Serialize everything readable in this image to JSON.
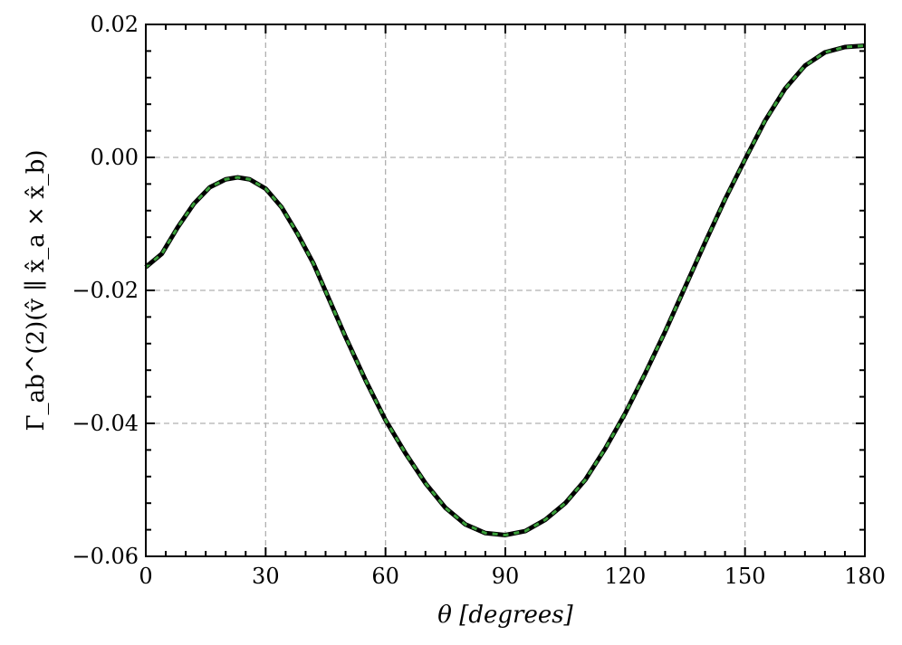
{
  "chart_data": {
    "type": "line",
    "title": "",
    "xlabel": "θ [degrees]",
    "ylabel": "Γ_ab^(2)(v̂ ∥ x̂_a × x̂_b)",
    "xlim": [
      0,
      180
    ],
    "ylim": [
      -0.06,
      0.02
    ],
    "x_ticks": [
      0,
      30,
      60,
      90,
      120,
      150,
      180
    ],
    "x_tick_labels": [
      "0",
      "30",
      "60",
      "90",
      "120",
      "150",
      "180"
    ],
    "y_ticks": [
      -0.06,
      -0.04,
      -0.02,
      0.0,
      0.02
    ],
    "y_tick_labels": [
      "−0.06",
      "−0.04",
      "−0.02",
      "0.00",
      "0.02"
    ],
    "grid": true,
    "legend": "none",
    "series": [
      {
        "color": "#000000",
        "style": "solid",
        "x": [
          0,
          4,
          8,
          12,
          16,
          20,
          23,
          26,
          30,
          34,
          38,
          42,
          46,
          50,
          55,
          60,
          65,
          70,
          75,
          80,
          85,
          90,
          95,
          100,
          105,
          110,
          115,
          120,
          125,
          130,
          135,
          140,
          145,
          150,
          155,
          160,
          165,
          170,
          175,
          180
        ],
        "y": [
          -0.0165,
          -0.0145,
          -0.0105,
          -0.007,
          -0.0045,
          -0.0033,
          -0.003,
          -0.0033,
          -0.0047,
          -0.0075,
          -0.0115,
          -0.016,
          -0.0215,
          -0.027,
          -0.0335,
          -0.0395,
          -0.0445,
          -0.049,
          -0.0527,
          -0.0552,
          -0.0565,
          -0.0568,
          -0.0562,
          -0.0545,
          -0.052,
          -0.0485,
          -0.0438,
          -0.0385,
          -0.0325,
          -0.0262,
          -0.0195,
          -0.0128,
          -0.0063,
          -0.0003,
          0.0055,
          0.0103,
          0.0138,
          0.0158,
          0.0166,
          0.0168
        ]
      },
      {
        "color": "#3a9f3a",
        "style": "dashed",
        "x": [
          0,
          4,
          8,
          12,
          16,
          20,
          23,
          26,
          30,
          34,
          38,
          42,
          46,
          50,
          55,
          60,
          65,
          70,
          75,
          80,
          85,
          90,
          95,
          100,
          105,
          110,
          115,
          120,
          125,
          130,
          135,
          140,
          145,
          150,
          155,
          160,
          165,
          170,
          175,
          180
        ],
        "y": [
          -0.0165,
          -0.0145,
          -0.0105,
          -0.007,
          -0.0045,
          -0.0033,
          -0.003,
          -0.0033,
          -0.0047,
          -0.0075,
          -0.0115,
          -0.016,
          -0.0215,
          -0.027,
          -0.0335,
          -0.0395,
          -0.0445,
          -0.049,
          -0.0527,
          -0.0552,
          -0.0565,
          -0.0568,
          -0.0562,
          -0.0545,
          -0.052,
          -0.0485,
          -0.0438,
          -0.0385,
          -0.0325,
          -0.0262,
          -0.0195,
          -0.0128,
          -0.0063,
          -0.0003,
          0.0055,
          0.0103,
          0.0138,
          0.0158,
          0.0166,
          0.0168
        ]
      }
    ]
  }
}
